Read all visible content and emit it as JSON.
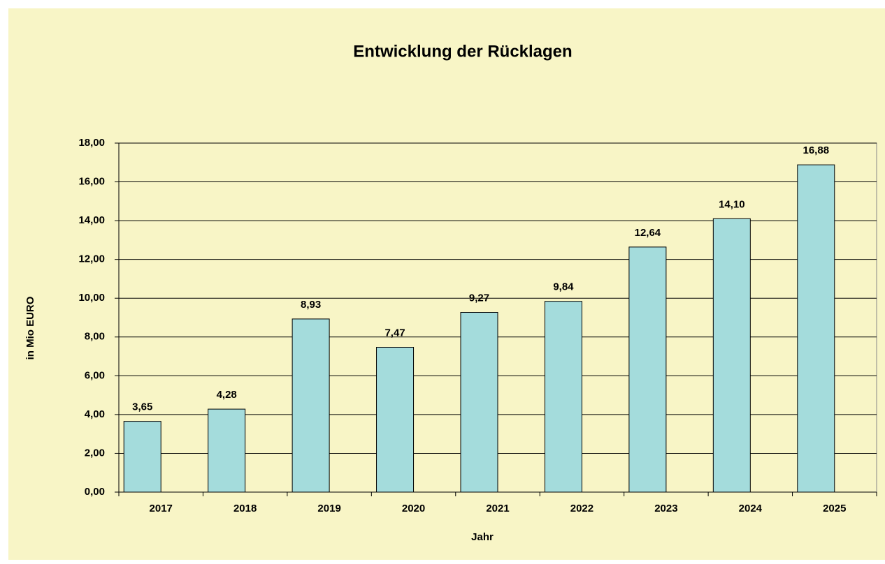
{
  "chart_data": {
    "type": "bar",
    "title": "Entwicklung der Rücklagen",
    "x_label": "Jahr",
    "y_label": "in Mio EURO",
    "categories": [
      "2017",
      "2018",
      "2019",
      "2020",
      "2021",
      "2022",
      "2023",
      "2024",
      "2025"
    ],
    "values": [
      3.65,
      4.28,
      8.93,
      7.47,
      9.27,
      9.84,
      12.64,
      14.1,
      16.88
    ],
    "value_labels": [
      "3,65",
      "4,28",
      "8,93",
      "7,47",
      "9,27",
      "9,84",
      "12,64",
      "14,10",
      "16,88"
    ],
    "color": "#a4dcdc",
    "ylim": [
      0,
      18
    ],
    "yticks": [
      {
        "value": 0,
        "label": "0,00"
      },
      {
        "value": 2,
        "label": "2,00"
      },
      {
        "value": 4,
        "label": "4,00"
      },
      {
        "value": 6,
        "label": "6,00"
      },
      {
        "value": 8,
        "label": "8,00"
      },
      {
        "value": 10,
        "label": "10,00"
      },
      {
        "value": 12,
        "label": "12,00"
      },
      {
        "value": 14,
        "label": "14,00"
      },
      {
        "value": 16,
        "label": "16,00"
      },
      {
        "value": 18,
        "label": "18,00"
      }
    ],
    "grid": true
  }
}
